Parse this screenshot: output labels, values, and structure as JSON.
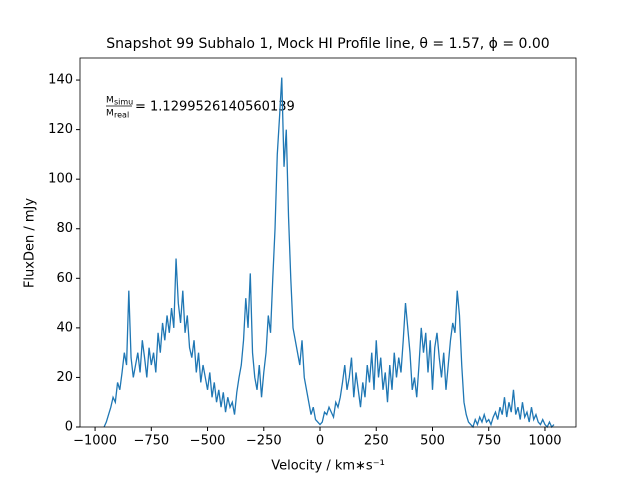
{
  "chart_data": {
    "type": "line",
    "title": "Snapshot 99 Subhalo 1, Mock HI Profile line, θ = 1.57, ϕ = 0.00",
    "x_label": "Velocity / km∗s⁻¹",
    "y_label": "FluxDen / mJy",
    "annotation": {
      "num": "M",
      "num_sub": "simu",
      "den": "M",
      "den_sub": "real",
      "text": "= 1.1299526140560139"
    },
    "color": "#1f77b4",
    "x": [
      -960,
      -950,
      -940,
      -930,
      -920,
      -910,
      -900,
      -890,
      -880,
      -870,
      -860,
      -850,
      -840,
      -830,
      -820,
      -810,
      -800,
      -790,
      -780,
      -770,
      -760,
      -750,
      -740,
      -730,
      -720,
      -710,
      -700,
      -690,
      -680,
      -670,
      -660,
      -650,
      -640,
      -630,
      -620,
      -610,
      -600,
      -590,
      -580,
      -570,
      -560,
      -550,
      -540,
      -530,
      -520,
      -510,
      -500,
      -490,
      -480,
      -470,
      -460,
      -450,
      -440,
      -430,
      -420,
      -410,
      -400,
      -390,
      -380,
      -370,
      -360,
      -350,
      -340,
      -330,
      -320,
      -310,
      -300,
      -290,
      -280,
      -270,
      -260,
      -250,
      -240,
      -230,
      -220,
      -210,
      -200,
      -190,
      -180,
      -170,
      -160,
      -150,
      -140,
      -130,
      -120,
      -110,
      -100,
      -90,
      -80,
      -70,
      -60,
      -50,
      -40,
      -30,
      -20,
      -10,
      0,
      10,
      20,
      30,
      40,
      50,
      60,
      70,
      80,
      90,
      100,
      110,
      120,
      130,
      140,
      150,
      160,
      170,
      180,
      190,
      200,
      210,
      220,
      230,
      240,
      250,
      260,
      270,
      280,
      290,
      300,
      310,
      320,
      330,
      340,
      350,
      360,
      370,
      380,
      390,
      400,
      410,
      420,
      430,
      440,
      450,
      460,
      470,
      480,
      490,
      500,
      510,
      520,
      530,
      540,
      550,
      560,
      570,
      580,
      590,
      600,
      610,
      620,
      630,
      640,
      650,
      660,
      670,
      680,
      690,
      700,
      710,
      720,
      730,
      740,
      750,
      760,
      770,
      780,
      790,
      800,
      810,
      820,
      830,
      840,
      850,
      860,
      870,
      880,
      890,
      900,
      910,
      920,
      930,
      940,
      950,
      960,
      970,
      980,
      990,
      1000,
      1010,
      1020,
      1030,
      1040
    ],
    "values": [
      0,
      2,
      5,
      8,
      12,
      10,
      18,
      15,
      22,
      30,
      25,
      55,
      28,
      20,
      25,
      30,
      22,
      35,
      28,
      20,
      32,
      25,
      30,
      22,
      38,
      30,
      42,
      35,
      45,
      38,
      48,
      40,
      68,
      50,
      42,
      55,
      38,
      45,
      32,
      28,
      35,
      22,
      30,
      18,
      25,
      20,
      15,
      22,
      12,
      18,
      10,
      15,
      8,
      14,
      6,
      12,
      8,
      10,
      5,
      14,
      20,
      25,
      35,
      52,
      40,
      62,
      30,
      20,
      15,
      25,
      12,
      22,
      30,
      45,
      38,
      60,
      80,
      110,
      125,
      141,
      105,
      120,
      85,
      60,
      40,
      35,
      30,
      25,
      35,
      20,
      15,
      10,
      5,
      8,
      3,
      2,
      1,
      2,
      6,
      5,
      8,
      6,
      4,
      10,
      8,
      12,
      18,
      25,
      15,
      20,
      28,
      12,
      22,
      15,
      8,
      18,
      12,
      25,
      18,
      30,
      15,
      35,
      20,
      28,
      15,
      22,
      10,
      25,
      15,
      30,
      20,
      28,
      22,
      35,
      50,
      40,
      30,
      15,
      20,
      12,
      25,
      40,
      30,
      38,
      22,
      35,
      15,
      32,
      38,
      28,
      20,
      30,
      15,
      25,
      35,
      42,
      38,
      55,
      45,
      25,
      10,
      5,
      2,
      1,
      0,
      3,
      1,
      4,
      2,
      5,
      2,
      3,
      1,
      4,
      6,
      3,
      8,
      5,
      12,
      4,
      10,
      6,
      15,
      5,
      8,
      3,
      10,
      4,
      6,
      2,
      8,
      3,
      5,
      2,
      1,
      3,
      1,
      0,
      2,
      0,
      1
    ],
    "xlim": [
      -1067,
      1138
    ],
    "ylim": [
      0,
      148.9
    ],
    "xticks": [
      {
        "value": -1000,
        "label": "−1000"
      },
      {
        "value": -750,
        "label": "−750"
      },
      {
        "value": -500,
        "label": "−500"
      },
      {
        "value": -250,
        "label": "−250"
      },
      0,
      250,
      500,
      750,
      1000
    ],
    "yticks": [
      0,
      20,
      40,
      60,
      80,
      100,
      120,
      140
    ]
  }
}
